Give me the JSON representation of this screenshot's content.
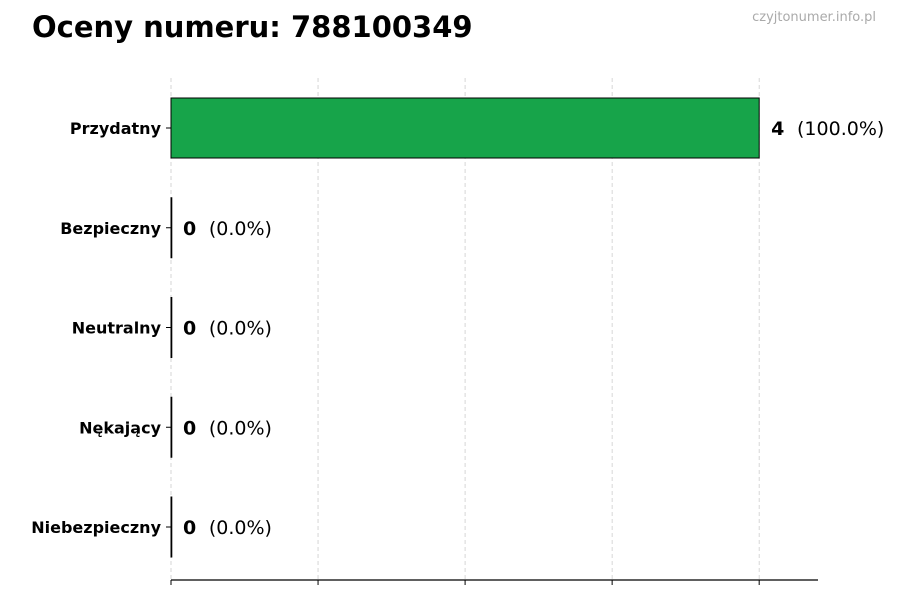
{
  "title": "Oceny numeru: 788100349",
  "watermark": "czyjtonumer.info.pl",
  "chart_data": {
    "type": "bar",
    "orientation": "horizontal",
    "categories": [
      "Przydatny",
      "Bezpieczny",
      "Neutralny",
      "Nękający",
      "Niebezpieczny"
    ],
    "values": [
      4,
      0,
      0,
      0,
      0
    ],
    "value_labels": [
      "4",
      "0",
      "0",
      "0",
      "0"
    ],
    "percent_labels": [
      "(100.0%)",
      "(0.0%)",
      "(0.0%)",
      "(0.0%)",
      "(0.0%)"
    ],
    "colors": [
      "#17a44a",
      "#17a44a",
      "#17a44a",
      "#17a44a",
      "#17a44a"
    ],
    "xlim": [
      0,
      4.4
    ],
    "xticks": [
      0,
      1,
      2,
      3,
      4
    ],
    "xtick_labels_shown": false,
    "grid": "vertical dashed",
    "xlabel": "",
    "ylabel": ""
  }
}
